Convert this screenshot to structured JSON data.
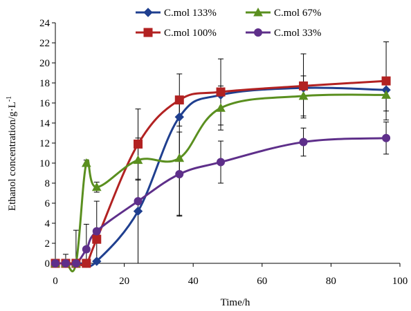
{
  "chart_data": {
    "type": "line",
    "xlabel": "Time/h",
    "ylabel": "Ethanol concentration/g·L",
    "ylabel_sup": "-1",
    "xlim": [
      0,
      100
    ],
    "ylim": [
      0,
      24
    ],
    "x_ticks": [
      0,
      20,
      40,
      60,
      80,
      100
    ],
    "y_ticks": [
      0,
      2,
      4,
      6,
      8,
      10,
      12,
      14,
      16,
      18,
      20,
      22,
      24
    ],
    "grid": false,
    "legend_position": "top",
    "series": [
      {
        "name": "C.mol 133%",
        "color": "#1f3f8f",
        "marker": "diamond",
        "x": [
          0,
          3,
          6,
          9,
          12,
          24,
          36,
          48,
          72,
          96
        ],
        "y": [
          0,
          0,
          0,
          0,
          0.2,
          5.2,
          14.6,
          16.8,
          17.5,
          17.3
        ],
        "err": [
          0,
          0,
          0,
          0,
          0,
          0,
          0,
          0,
          0,
          0
        ],
        "smooth_hints": [
          0,
          0,
          0,
          0,
          0,
          0,
          0,
          0,
          0,
          0
        ]
      },
      {
        "name": "C.mol 100%",
        "color": "#b22222",
        "marker": "square",
        "x": [
          0,
          3,
          6,
          9,
          12,
          24,
          36,
          48,
          72,
          96
        ],
        "y": [
          0,
          0,
          0,
          0,
          2.4,
          11.9,
          16.3,
          17.1,
          17.7,
          18.2
        ],
        "err": [
          0,
          0,
          0,
          0,
          0,
          3.5,
          2.6,
          3.3,
          3.2,
          3.9
        ]
      },
      {
        "name": "C.mol 67%",
        "color": "#5a8f1f",
        "marker": "triangle",
        "x": [
          0,
          3,
          6,
          9,
          12,
          24,
          36,
          48,
          72,
          96
        ],
        "y": [
          0,
          0,
          0,
          10.0,
          7.6,
          10.3,
          10.5,
          15.5,
          16.7,
          16.8
        ],
        "err": [
          0,
          0,
          0,
          0.3,
          0.5,
          2.0,
          5.7,
          2.2,
          2.0,
          1.6
        ]
      },
      {
        "name": "C.mol 33%",
        "color": "#5e2f8a",
        "marker": "circle",
        "x": [
          0,
          3,
          6,
          9,
          12,
          24,
          36,
          48,
          72,
          96
        ],
        "y": [
          0,
          0,
          0,
          1.4,
          3.2,
          6.2,
          8.9,
          10.1,
          12.1,
          12.5
        ],
        "err": [
          0,
          0.9,
          3.3,
          2.5,
          3.0,
          6.3,
          4.2,
          2.1,
          1.4,
          1.6
        ]
      }
    ]
  }
}
